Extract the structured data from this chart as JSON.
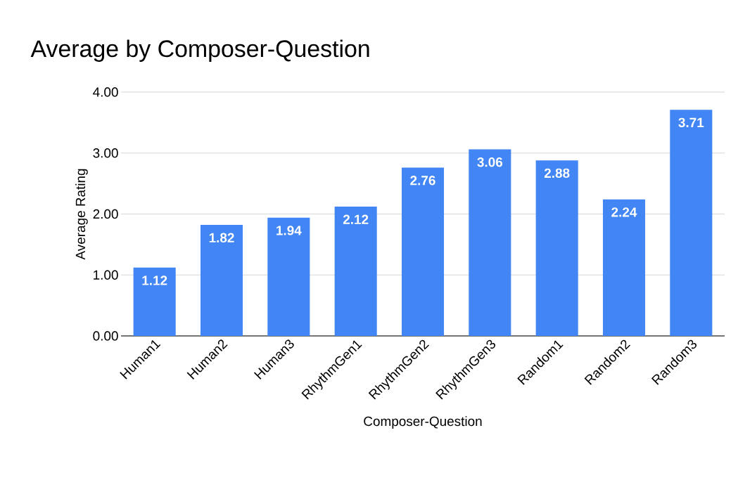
{
  "chart_data": {
    "type": "bar",
    "title": "Average by Composer-Question",
    "xlabel": "Composer-Question",
    "ylabel": "Average Rating",
    "categories": [
      "Human1",
      "Human2",
      "Human3",
      "RhythmGen1",
      "RhythmGen2",
      "RhythmGen3",
      "Random1",
      "Random2",
      "Random3"
    ],
    "values": [
      1.12,
      1.82,
      1.94,
      2.12,
      2.76,
      3.06,
      2.88,
      2.24,
      3.71
    ],
    "color": "#4285f4",
    "ylim": [
      0,
      4
    ],
    "yticks": [
      {
        "value": 0,
        "label": "0.00"
      },
      {
        "value": 1,
        "label": "1.00"
      },
      {
        "value": 2,
        "label": "2.00"
      },
      {
        "value": 3,
        "label": "3.00"
      },
      {
        "value": 4,
        "label": "4.00"
      }
    ],
    "grid": "y",
    "data_labels": true
  }
}
